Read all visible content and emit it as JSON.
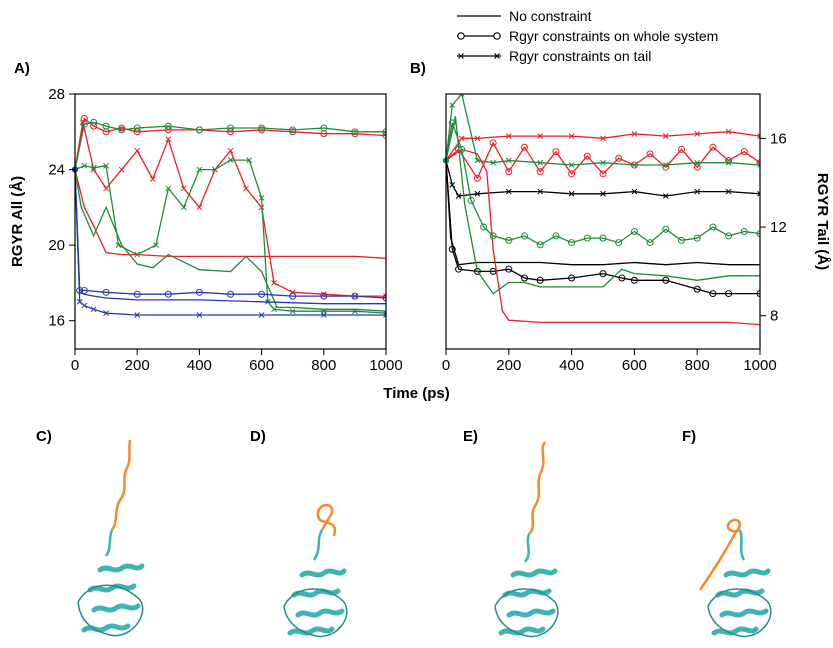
{
  "legend": [
    {
      "label": "No constraint",
      "marker": "none"
    },
    {
      "label": "Rgyr constraints on whole system",
      "marker": "circle"
    },
    {
      "label": "Rgyr constraints on tail",
      "marker": "cross"
    }
  ],
  "xlabel": "Time (ps)",
  "panel_labels": {
    "a": "A)",
    "b": "B)",
    "c": "C)",
    "d": "D)",
    "e": "E)",
    "f": "F)"
  },
  "colors": {
    "red": "#e8202a",
    "green": "#1f8a3a",
    "blue": "#2a3aa8",
    "black": "#000000",
    "orange": "#f08c2a",
    "teal": "#3fb3b3"
  },
  "chart_data": [
    {
      "type": "line",
      "panel": "A",
      "ylabel": "RGYR All (Å)",
      "xlim": [
        0,
        1000
      ],
      "ylim": [
        14.5,
        28
      ],
      "xticks": [
        0,
        200,
        400,
        600,
        800,
        1000
      ],
      "yticks": [
        16,
        20,
        24,
        28
      ],
      "series": [
        {
          "color": "red",
          "marker": "none",
          "x": [
            0,
            30,
            60,
            100,
            150,
            200,
            300,
            400,
            500,
            600,
            700,
            800,
            900,
            1000
          ],
          "y": [
            24,
            22,
            21,
            19.6,
            19.5,
            19.5,
            19.4,
            19.4,
            19.4,
            19.4,
            19.4,
            19.4,
            19.4,
            19.3
          ]
        },
        {
          "color": "red",
          "marker": "circle",
          "x": [
            0,
            30,
            60,
            100,
            150,
            200,
            300,
            400,
            500,
            600,
            700,
            800,
            900,
            1000
          ],
          "y": [
            24,
            26.7,
            26.3,
            26,
            26.2,
            26,
            26.1,
            26.1,
            26,
            26.1,
            26,
            25.9,
            25.9,
            25.8
          ]
        },
        {
          "color": "red",
          "marker": "cross",
          "x": [
            0,
            25,
            60,
            100,
            150,
            200,
            250,
            300,
            350,
            400,
            450,
            500,
            550,
            600,
            640,
            700,
            800,
            900,
            1000
          ],
          "y": [
            24,
            26.5,
            24,
            23,
            24,
            25,
            23.5,
            25.6,
            23,
            22,
            24,
            25,
            23,
            22,
            18,
            17.5,
            17.4,
            17.3,
            17.3
          ]
        },
        {
          "color": "green",
          "marker": "none",
          "x": [
            0,
            20,
            60,
            100,
            150,
            200,
            250,
            300,
            400,
            500,
            550,
            600,
            650,
            700,
            800,
            900,
            1000
          ],
          "y": [
            24,
            22,
            20.5,
            22,
            20,
            19,
            18.8,
            19.5,
            18.7,
            18.6,
            19.4,
            18.6,
            16.7,
            16.7,
            16.6,
            16.6,
            16.5
          ]
        },
        {
          "color": "green",
          "marker": "circle",
          "x": [
            0,
            30,
            60,
            100,
            150,
            200,
            300,
            400,
            500,
            600,
            700,
            800,
            900,
            1000
          ],
          "y": [
            24,
            26.4,
            26.5,
            26.3,
            26.1,
            26.2,
            26.3,
            26.1,
            26.2,
            26.2,
            26.1,
            26.2,
            26,
            26
          ]
        },
        {
          "color": "green",
          "marker": "cross",
          "x": [
            0,
            30,
            60,
            100,
            140,
            200,
            260,
            300,
            350,
            400,
            450,
            500,
            560,
            600,
            620,
            640,
            700,
            800,
            900,
            1000
          ],
          "y": [
            24,
            24.2,
            24.1,
            24.2,
            20,
            19.5,
            20,
            23,
            22,
            24,
            24,
            24.5,
            24.5,
            22.5,
            17,
            16.6,
            16.5,
            16.5,
            16.5,
            16.4
          ]
        },
        {
          "color": "blue",
          "marker": "none",
          "x": [
            0,
            15,
            30,
            60,
            100,
            200,
            400,
            600,
            800,
            1000
          ],
          "y": [
            24,
            17.5,
            17.4,
            17.3,
            17.2,
            17.1,
            17.1,
            17,
            16.9,
            16.9
          ]
        },
        {
          "color": "blue",
          "marker": "circle",
          "x": [
            0,
            15,
            30,
            100,
            200,
            300,
            400,
            500,
            600,
            700,
            800,
            900,
            1000
          ],
          "y": [
            24,
            17.6,
            17.6,
            17.5,
            17.4,
            17.4,
            17.5,
            17.4,
            17.4,
            17.3,
            17.3,
            17.3,
            17.2
          ]
        },
        {
          "color": "blue",
          "marker": "cross",
          "x": [
            0,
            15,
            30,
            60,
            100,
            200,
            400,
            600,
            800,
            1000
          ],
          "y": [
            24,
            17,
            16.8,
            16.6,
            16.4,
            16.3,
            16.3,
            16.3,
            16.3,
            16.3
          ]
        }
      ]
    },
    {
      "type": "line",
      "panel": "B",
      "ylabel": "RGYR Tail (Å)",
      "xlim": [
        0,
        1000
      ],
      "ylim": [
        6.5,
        18
      ],
      "xticks": [
        0,
        200,
        400,
        600,
        800,
        1000
      ],
      "yticks": [
        8,
        12,
        16
      ],
      "series": [
        {
          "color": "black",
          "marker": "none",
          "x": [
            0,
            15,
            40,
            100,
            200,
            300,
            400,
            500,
            600,
            700,
            800,
            900,
            1000
          ],
          "y": [
            15,
            11.5,
            10.3,
            10.4,
            10.4,
            10.4,
            10.3,
            10.3,
            10.4,
            10.3,
            10.4,
            10.3,
            10.3
          ]
        },
        {
          "color": "black",
          "marker": "circle",
          "x": [
            0,
            20,
            40,
            100,
            150,
            200,
            250,
            300,
            400,
            500,
            560,
            600,
            700,
            800,
            850,
            900,
            1000
          ],
          "y": [
            15,
            11,
            10.1,
            10,
            10,
            10.1,
            9.7,
            9.6,
            9.7,
            9.9,
            9.7,
            9.6,
            9.6,
            9.2,
            9,
            9,
            9
          ]
        },
        {
          "color": "black",
          "marker": "cross",
          "x": [
            0,
            20,
            40,
            100,
            200,
            300,
            400,
            500,
            600,
            700,
            800,
            900,
            1000
          ],
          "y": [
            15,
            13.9,
            13.4,
            13.5,
            13.6,
            13.6,
            13.5,
            13.5,
            13.6,
            13.4,
            13.6,
            13.6,
            13.5
          ]
        },
        {
          "color": "red",
          "marker": "none",
          "x": [
            0,
            50,
            100,
            130,
            150,
            180,
            200,
            300,
            400,
            500,
            600,
            700,
            800,
            900,
            1000
          ],
          "y": [
            15,
            15.5,
            15.3,
            14.5,
            11,
            8.2,
            7.8,
            7.7,
            7.7,
            7.7,
            7.7,
            7.7,
            7.7,
            7.7,
            7.6
          ]
        },
        {
          "color": "red",
          "marker": "circle",
          "x": [
            0,
            40,
            100,
            150,
            200,
            250,
            300,
            350,
            400,
            450,
            500,
            550,
            600,
            650,
            700,
            750,
            800,
            850,
            900,
            950,
            1000
          ],
          "y": [
            15,
            15.5,
            14.2,
            15.8,
            14.5,
            15.6,
            14.5,
            15.4,
            14.4,
            15.2,
            14.4,
            15.1,
            14.8,
            15.3,
            14.7,
            15.5,
            14.7,
            15.6,
            15,
            15.4,
            14.9
          ]
        },
        {
          "color": "red",
          "marker": "cross",
          "x": [
            0,
            50,
            100,
            200,
            300,
            400,
            500,
            600,
            700,
            800,
            900,
            1000
          ],
          "y": [
            15,
            16,
            16,
            16.1,
            16.1,
            16.1,
            16,
            16.2,
            16.1,
            16.2,
            16.3,
            16.1
          ]
        },
        {
          "color": "green",
          "marker": "none",
          "x": [
            0,
            30,
            60,
            100,
            150,
            200,
            250,
            300,
            400,
            500,
            560,
            600,
            700,
            800,
            900,
            1000
          ],
          "y": [
            15,
            17,
            13,
            10,
            9,
            9.5,
            9.5,
            9.3,
            9.3,
            9.3,
            10.1,
            9.9,
            9.8,
            9.6,
            9.8,
            9.8
          ]
        },
        {
          "color": "green",
          "marker": "circle",
          "x": [
            0,
            20,
            50,
            80,
            120,
            150,
            200,
            250,
            300,
            350,
            400,
            450,
            500,
            550,
            600,
            650,
            700,
            750,
            800,
            850,
            900,
            950,
            1000
          ],
          "y": [
            15,
            16.7,
            15.5,
            13.2,
            12,
            11.6,
            11.4,
            11.6,
            11.2,
            11.6,
            11.3,
            11.5,
            11.5,
            11.3,
            11.8,
            11.3,
            11.9,
            11.4,
            11.5,
            12,
            11.6,
            11.8,
            11.7
          ]
        },
        {
          "color": "green",
          "marker": "cross",
          "x": [
            0,
            20,
            50,
            100,
            150,
            200,
            300,
            400,
            500,
            600,
            700,
            800,
            900,
            1000
          ],
          "y": [
            15,
            17.5,
            18,
            15,
            14.9,
            15,
            14.9,
            14.8,
            14.9,
            14.8,
            14.8,
            14.9,
            14.9,
            14.8
          ]
        }
      ]
    }
  ]
}
